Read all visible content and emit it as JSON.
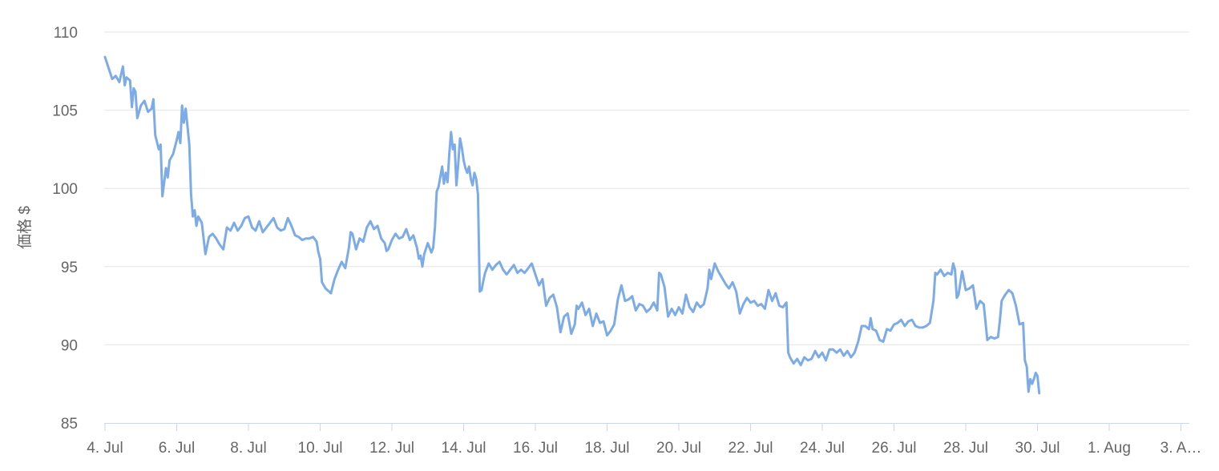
{
  "chart_data": {
    "type": "line",
    "title": "",
    "xlabel": "",
    "ylabel": "価格 $",
    "ylim": [
      85,
      110
    ],
    "y_ticks": [
      "85",
      "90",
      "95",
      "100",
      "105",
      "110"
    ],
    "x_ticks": [
      "4. Jul",
      "6. Jul",
      "8. Jul",
      "10. Jul",
      "12. Jul",
      "14. Jul",
      "16. Jul",
      "18. Jul",
      "20. Jul",
      "22. Jul",
      "24. Jul",
      "26. Jul",
      "28. Jul",
      "30. Jul",
      "1. Aug",
      "3. A…"
    ],
    "grid": "horizontal",
    "legend": "none",
    "colors": {
      "line": "#7cabe8",
      "grid": "#e6e6e6",
      "axis": "#ccd6eb",
      "label": "#666666"
    },
    "series": [
      {
        "values": [
          [
            4.0,
            108.4
          ],
          [
            4.1,
            107.7
          ],
          [
            4.2,
            107.0
          ],
          [
            4.3,
            107.2
          ],
          [
            4.4,
            106.8
          ],
          [
            4.5,
            107.8
          ],
          [
            4.55,
            106.6
          ],
          [
            4.6,
            107.1
          ],
          [
            4.7,
            106.9
          ],
          [
            4.75,
            105.2
          ],
          [
            4.8,
            106.4
          ],
          [
            4.85,
            106.2
          ],
          [
            4.9,
            104.5
          ],
          [
            5.0,
            105.3
          ],
          [
            5.1,
            105.6
          ],
          [
            5.2,
            104.9
          ],
          [
            5.3,
            105.1
          ],
          [
            5.35,
            105.7
          ],
          [
            5.4,
            103.4
          ],
          [
            5.5,
            102.5
          ],
          [
            5.55,
            102.8
          ],
          [
            5.6,
            99.5
          ],
          [
            5.7,
            101.3
          ],
          [
            5.75,
            100.7
          ],
          [
            5.8,
            101.8
          ],
          [
            5.9,
            102.2
          ],
          [
            6.0,
            103.1
          ],
          [
            6.05,
            103.6
          ],
          [
            6.1,
            102.9
          ],
          [
            6.15,
            105.3
          ],
          [
            6.2,
            104.2
          ],
          [
            6.25,
            105.1
          ],
          [
            6.3,
            104.0
          ],
          [
            6.35,
            102.8
          ],
          [
            6.4,
            99.6
          ],
          [
            6.45,
            98.2
          ],
          [
            6.5,
            98.6
          ],
          [
            6.55,
            97.6
          ],
          [
            6.6,
            98.2
          ],
          [
            6.7,
            97.8
          ],
          [
            6.8,
            95.8
          ],
          [
            6.9,
            96.9
          ],
          [
            7.0,
            97.1
          ],
          [
            7.1,
            96.8
          ],
          [
            7.2,
            96.4
          ],
          [
            7.3,
            96.1
          ],
          [
            7.4,
            97.5
          ],
          [
            7.5,
            97.3
          ],
          [
            7.6,
            97.8
          ],
          [
            7.7,
            97.3
          ],
          [
            7.8,
            97.6
          ],
          [
            7.9,
            98.1
          ],
          [
            8.0,
            98.2
          ],
          [
            8.1,
            97.5
          ],
          [
            8.2,
            97.3
          ],
          [
            8.3,
            97.9
          ],
          [
            8.4,
            97.2
          ],
          [
            8.5,
            97.5
          ],
          [
            8.6,
            97.8
          ],
          [
            8.7,
            98.1
          ],
          [
            8.8,
            97.5
          ],
          [
            8.9,
            97.3
          ],
          [
            9.0,
            97.4
          ],
          [
            9.1,
            98.1
          ],
          [
            9.2,
            97.6
          ],
          [
            9.3,
            97.0
          ],
          [
            9.4,
            96.9
          ],
          [
            9.5,
            96.7
          ],
          [
            9.6,
            96.8
          ],
          [
            9.7,
            96.8
          ],
          [
            9.8,
            96.9
          ],
          [
            9.9,
            96.6
          ],
          [
            9.95,
            95.9
          ],
          [
            10.0,
            95.5
          ],
          [
            10.05,
            94.0
          ],
          [
            10.1,
            93.8
          ],
          [
            10.15,
            93.6
          ],
          [
            10.2,
            93.5
          ],
          [
            10.3,
            93.3
          ],
          [
            10.4,
            94.2
          ],
          [
            10.5,
            94.8
          ],
          [
            10.6,
            95.3
          ],
          [
            10.7,
            94.9
          ],
          [
            10.8,
            96.2
          ],
          [
            10.85,
            97.2
          ],
          [
            10.9,
            97.1
          ],
          [
            11.0,
            96.1
          ],
          [
            11.1,
            96.8
          ],
          [
            11.2,
            96.6
          ],
          [
            11.3,
            97.5
          ],
          [
            11.4,
            97.9
          ],
          [
            11.5,
            97.4
          ],
          [
            11.6,
            97.6
          ],
          [
            11.7,
            96.8
          ],
          [
            11.8,
            96.5
          ],
          [
            11.85,
            96.0
          ],
          [
            11.9,
            96.1
          ],
          [
            12.0,
            96.7
          ],
          [
            12.1,
            97.1
          ],
          [
            12.2,
            96.8
          ],
          [
            12.3,
            96.9
          ],
          [
            12.4,
            97.4
          ],
          [
            12.5,
            96.7
          ],
          [
            12.6,
            97.0
          ],
          [
            12.7,
            96.2
          ],
          [
            12.75,
            95.5
          ],
          [
            12.8,
            95.7
          ],
          [
            12.85,
            95.0
          ],
          [
            12.9,
            95.8
          ],
          [
            13.0,
            96.5
          ],
          [
            13.1,
            95.9
          ],
          [
            13.15,
            96.2
          ],
          [
            13.2,
            97.5
          ],
          [
            13.25,
            99.8
          ],
          [
            13.3,
            100.1
          ],
          [
            13.4,
            101.4
          ],
          [
            13.45,
            100.3
          ],
          [
            13.5,
            101.0
          ],
          [
            13.55,
            100.4
          ],
          [
            13.6,
            102.2
          ],
          [
            13.65,
            103.6
          ],
          [
            13.7,
            102.5
          ],
          [
            13.75,
            102.8
          ],
          [
            13.8,
            100.2
          ],
          [
            13.85,
            101.6
          ],
          [
            13.9,
            103.2
          ],
          [
            13.95,
            102.6
          ],
          [
            14.0,
            101.8
          ],
          [
            14.05,
            101.3
          ],
          [
            14.1,
            101.0
          ],
          [
            14.15,
            101.4
          ],
          [
            14.2,
            100.6
          ],
          [
            14.25,
            100.2
          ],
          [
            14.3,
            101.0
          ],
          [
            14.35,
            100.6
          ],
          [
            14.4,
            99.6
          ],
          [
            14.45,
            93.4
          ],
          [
            14.5,
            93.5
          ],
          [
            14.55,
            94.1
          ],
          [
            14.6,
            94.6
          ],
          [
            14.7,
            95.2
          ],
          [
            14.8,
            94.8
          ],
          [
            14.9,
            95.1
          ],
          [
            15.0,
            95.3
          ],
          [
            15.1,
            94.8
          ],
          [
            15.2,
            94.5
          ],
          [
            15.3,
            94.8
          ],
          [
            15.4,
            95.1
          ],
          [
            15.5,
            94.6
          ],
          [
            15.6,
            94.8
          ],
          [
            15.7,
            94.6
          ],
          [
            15.8,
            94.9
          ],
          [
            15.9,
            95.2
          ],
          [
            16.0,
            94.5
          ],
          [
            16.1,
            93.8
          ],
          [
            16.2,
            94.2
          ],
          [
            16.3,
            92.5
          ],
          [
            16.4,
            93.0
          ],
          [
            16.5,
            93.2
          ],
          [
            16.6,
            92.4
          ],
          [
            16.7,
            90.8
          ],
          [
            16.8,
            91.8
          ],
          [
            16.9,
            92.0
          ],
          [
            17.0,
            90.7
          ],
          [
            17.1,
            91.3
          ],
          [
            17.15,
            92.5
          ],
          [
            17.2,
            92.3
          ],
          [
            17.3,
            92.7
          ],
          [
            17.4,
            91.9
          ],
          [
            17.5,
            92.3
          ],
          [
            17.6,
            91.2
          ],
          [
            17.7,
            92.0
          ],
          [
            17.8,
            91.4
          ],
          [
            17.9,
            91.5
          ],
          [
            18.0,
            90.6
          ],
          [
            18.1,
            90.9
          ],
          [
            18.2,
            91.3
          ],
          [
            18.3,
            92.9
          ],
          [
            18.4,
            93.8
          ],
          [
            18.5,
            92.8
          ],
          [
            18.6,
            92.9
          ],
          [
            18.7,
            93.1
          ],
          [
            18.8,
            92.2
          ],
          [
            18.9,
            92.6
          ],
          [
            19.0,
            92.5
          ],
          [
            19.1,
            92.1
          ],
          [
            19.2,
            92.3
          ],
          [
            19.3,
            92.7
          ],
          [
            19.4,
            92.2
          ],
          [
            19.45,
            94.6
          ],
          [
            19.5,
            94.5
          ],
          [
            19.6,
            93.7
          ],
          [
            19.7,
            91.8
          ],
          [
            19.8,
            92.3
          ],
          [
            19.9,
            91.9
          ],
          [
            20.0,
            92.4
          ],
          [
            20.1,
            92.0
          ],
          [
            20.2,
            93.2
          ],
          [
            20.3,
            92.4
          ],
          [
            20.4,
            92.1
          ],
          [
            20.5,
            92.7
          ],
          [
            20.6,
            92.4
          ],
          [
            20.7,
            92.6
          ],
          [
            20.8,
            93.6
          ],
          [
            20.85,
            94.8
          ],
          [
            20.9,
            94.2
          ],
          [
            21.0,
            95.2
          ],
          [
            21.1,
            94.7
          ],
          [
            21.2,
            94.3
          ],
          [
            21.3,
            93.9
          ],
          [
            21.4,
            93.6
          ],
          [
            21.5,
            94.0
          ],
          [
            21.6,
            93.4
          ],
          [
            21.7,
            92.0
          ],
          [
            21.8,
            92.6
          ],
          [
            21.9,
            93.0
          ],
          [
            22.0,
            92.7
          ],
          [
            22.1,
            92.8
          ],
          [
            22.2,
            92.5
          ],
          [
            22.3,
            92.6
          ],
          [
            22.4,
            92.3
          ],
          [
            22.5,
            93.5
          ],
          [
            22.6,
            92.8
          ],
          [
            22.7,
            93.3
          ],
          [
            22.8,
            92.5
          ],
          [
            22.9,
            92.4
          ],
          [
            23.0,
            92.7
          ],
          [
            23.05,
            89.5
          ],
          [
            23.1,
            89.2
          ],
          [
            23.2,
            88.8
          ],
          [
            23.3,
            89.1
          ],
          [
            23.4,
            88.7
          ],
          [
            23.5,
            89.2
          ],
          [
            23.6,
            89.0
          ],
          [
            23.7,
            89.1
          ],
          [
            23.8,
            89.6
          ],
          [
            23.9,
            89.2
          ],
          [
            24.0,
            89.5
          ],
          [
            24.1,
            89.0
          ],
          [
            24.2,
            89.7
          ],
          [
            24.3,
            89.7
          ],
          [
            24.4,
            89.5
          ],
          [
            24.5,
            89.7
          ],
          [
            24.6,
            89.3
          ],
          [
            24.7,
            89.6
          ],
          [
            24.8,
            89.2
          ],
          [
            24.9,
            89.5
          ],
          [
            25.0,
            90.2
          ],
          [
            25.1,
            91.2
          ],
          [
            25.2,
            91.2
          ],
          [
            25.3,
            91.0
          ],
          [
            25.35,
            91.7
          ],
          [
            25.4,
            91.0
          ],
          [
            25.5,
            90.9
          ],
          [
            25.6,
            90.3
          ],
          [
            25.7,
            90.2
          ],
          [
            25.8,
            91.0
          ],
          [
            25.9,
            90.9
          ],
          [
            26.0,
            91.3
          ],
          [
            26.1,
            91.4
          ],
          [
            26.2,
            91.6
          ],
          [
            26.3,
            91.2
          ],
          [
            26.4,
            91.5
          ],
          [
            26.5,
            91.6
          ],
          [
            26.6,
            91.2
          ],
          [
            26.7,
            91.1
          ],
          [
            26.8,
            91.1
          ],
          [
            26.9,
            91.2
          ],
          [
            27.0,
            91.4
          ],
          [
            27.1,
            92.8
          ],
          [
            27.15,
            94.6
          ],
          [
            27.2,
            94.5
          ],
          [
            27.3,
            94.8
          ],
          [
            27.4,
            94.4
          ],
          [
            27.5,
            94.6
          ],
          [
            27.6,
            94.5
          ],
          [
            27.65,
            95.2
          ],
          [
            27.7,
            94.8
          ],
          [
            27.75,
            93.0
          ],
          [
            27.8,
            93.2
          ],
          [
            27.9,
            94.7
          ],
          [
            28.0,
            93.5
          ],
          [
            28.1,
            93.6
          ],
          [
            28.2,
            93.8
          ],
          [
            28.3,
            92.3
          ],
          [
            28.4,
            92.8
          ],
          [
            28.5,
            92.6
          ],
          [
            28.6,
            90.3
          ],
          [
            28.7,
            90.5
          ],
          [
            28.8,
            90.4
          ],
          [
            28.9,
            90.5
          ],
          [
            28.95,
            91.5
          ],
          [
            29.0,
            92.8
          ],
          [
            29.1,
            93.2
          ],
          [
            29.2,
            93.5
          ],
          [
            29.3,
            93.3
          ],
          [
            29.4,
            92.5
          ],
          [
            29.5,
            91.3
          ],
          [
            29.6,
            91.4
          ],
          [
            29.65,
            89.0
          ],
          [
            29.7,
            88.6
          ],
          [
            29.75,
            87.0
          ],
          [
            29.8,
            87.8
          ],
          [
            29.85,
            87.5
          ],
          [
            29.9,
            87.8
          ],
          [
            29.95,
            88.2
          ],
          [
            30.0,
            88.0
          ],
          [
            30.05,
            86.9
          ]
        ]
      }
    ]
  }
}
